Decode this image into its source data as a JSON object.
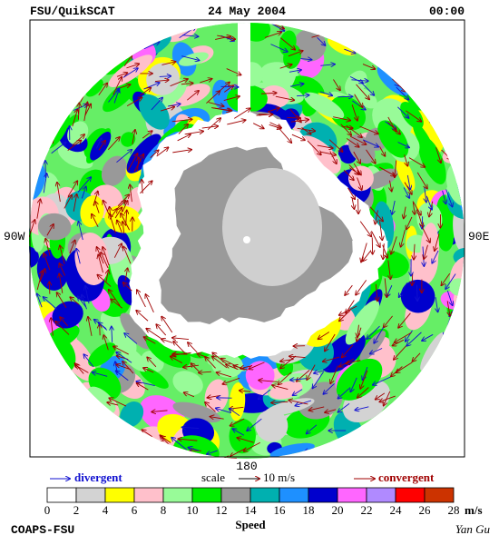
{
  "header": {
    "left": "FSU/QuikSCAT",
    "center": "24 May 2004",
    "right": "00:00"
  },
  "map": {
    "left_label": "90W",
    "right_label": "90E",
    "bottom_label": "180"
  },
  "legend": {
    "divergent": "divergent",
    "scale": "scale",
    "scale_value": "10 m/s",
    "convergent": "convergent"
  },
  "colorbar": {
    "ticks": [
      0,
      2,
      4,
      6,
      8,
      10,
      12,
      14,
      16,
      18,
      20,
      22,
      24,
      26,
      28
    ],
    "colors": [
      "#ffffff",
      "#d3d3d3",
      "#ffff00",
      "#ffc0cb",
      "#98fb98",
      "#00ee00",
      "#999999",
      "#00b0b0",
      "#1e90ff",
      "#0000cd",
      "#ff66ff",
      "#b08aff",
      "#ff0000",
      "#cc3300",
      "#000000"
    ],
    "unit": "m/s",
    "title": "Speed"
  },
  "footer": {
    "left": "COAPS-FSU",
    "signature": "Yan Gu"
  }
}
